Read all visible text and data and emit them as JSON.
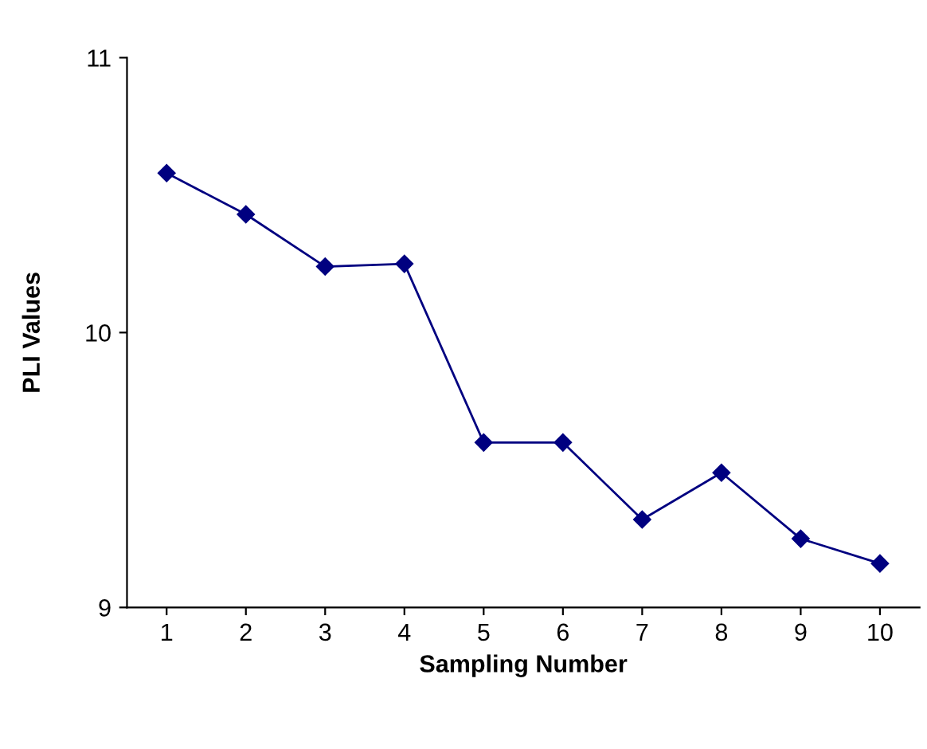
{
  "chart_data": {
    "type": "line",
    "xlabel": "Sampling Number",
    "ylabel": "PLI Values",
    "categories": [
      "1",
      "2",
      "3",
      "4",
      "5",
      "6",
      "7",
      "8",
      "9",
      "10"
    ],
    "series": [
      {
        "color": "#000080",
        "values": [
          10.58,
          10.43,
          10.24,
          10.25,
          9.6,
          9.6,
          9.32,
          9.49,
          9.25,
          9.16
        ]
      }
    ],
    "ylim": [
      9,
      11
    ],
    "yticks": [
      9,
      10,
      11
    ],
    "grid": false,
    "legend": false,
    "marker": "diamond",
    "line_style": "solid"
  }
}
